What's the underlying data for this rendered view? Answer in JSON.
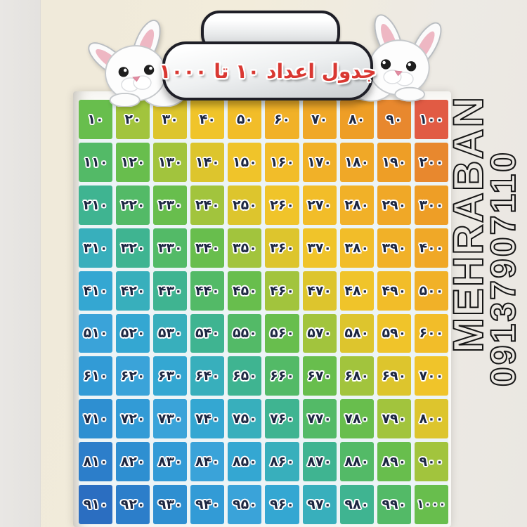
{
  "chart_data": {
    "type": "table",
    "title": "جدول اعداد ۱۰ تا ۱۰۰۰",
    "rows": [
      [
        "۱۰",
        "۲۰",
        "۳۰",
        "۴۰",
        "۵۰",
        "۶۰",
        "۷۰",
        "۸۰",
        "۹۰",
        "۱۰۰"
      ],
      [
        "۱۱۰",
        "۱۲۰",
        "۱۳۰",
        "۱۴۰",
        "۱۵۰",
        "۱۶۰",
        "۱۷۰",
        "۱۸۰",
        "۱۹۰",
        "۲۰۰"
      ],
      [
        "۲۱۰",
        "۲۲۰",
        "۲۳۰",
        "۲۴۰",
        "۲۵۰",
        "۲۶۰",
        "۲۷۰",
        "۲۸۰",
        "۲۹۰",
        "۳۰۰"
      ],
      [
        "۳۱۰",
        "۳۲۰",
        "۳۳۰",
        "۳۴۰",
        "۳۵۰",
        "۳۶۰",
        "۳۷۰",
        "۳۸۰",
        "۳۹۰",
        "۴۰۰"
      ],
      [
        "۴۱۰",
        "۴۲۰",
        "۴۳۰",
        "۴۴۰",
        "۴۵۰",
        "۴۶۰",
        "۴۷۰",
        "۴۸۰",
        "۴۹۰",
        "۵۰۰"
      ],
      [
        "۵۱۰",
        "۵۲۰",
        "۵۳۰",
        "۵۴۰",
        "۵۵۰",
        "۵۶۰",
        "۵۷۰",
        "۵۸۰",
        "۵۹۰",
        "۶۰۰"
      ],
      [
        "۶۱۰",
        "۶۲۰",
        "۶۳۰",
        "۶۴۰",
        "۶۵۰",
        "۶۶۰",
        "۶۷۰",
        "۶۸۰",
        "۶۹۰",
        "۷۰۰"
      ],
      [
        "۷۱۰",
        "۷۲۰",
        "۷۳۰",
        "۷۴۰",
        "۷۵۰",
        "۷۶۰",
        "۷۷۰",
        "۷۸۰",
        "۷۹۰",
        "۸۰۰"
      ],
      [
        "۸۱۰",
        "۸۲۰",
        "۸۳۰",
        "۸۴۰",
        "۸۵۰",
        "۸۶۰",
        "۸۷۰",
        "۸۸۰",
        "۸۹۰",
        "۹۰۰"
      ],
      [
        "۹۱۰",
        "۹۲۰",
        "۹۳۰",
        "۹۴۰",
        "۹۵۰",
        "۹۶۰",
        "۹۷۰",
        "۹۸۰",
        "۹۹۰",
        "۱۰۰۰"
      ]
    ],
    "layout": "10x10 grid, values 10..1000 step 10 in Persian numerals, increasing left-to-right then top-to-bottom; cell color follows bottom-left(blue) to top-right(orange) diagonal",
    "diagonal_palette": [
      "#2b6ec1",
      "#2c7eca",
      "#2e8fd1",
      "#329bd6",
      "#3aa3d9",
      "#34a7d2",
      "#38afbc",
      "#3fb491",
      "#53ba67",
      "#68be4d",
      "#a2c43d",
      "#ddc52d",
      "#f0c42a",
      "#f2bd29",
      "#f1b128",
      "#f0a827",
      "#ee9e26",
      "#e8882e",
      "#e15b44"
    ],
    "number_color": "#1d2742",
    "title_color": "#d93832"
  },
  "watermark": {
    "name": "MEHRABAN",
    "phone": "09137907110"
  },
  "decor": {
    "bunny_icon": "white-cartoon-rabbit",
    "hanger_tab": "silver-rounded-tab",
    "title_banner": "silver-pill-banner"
  }
}
